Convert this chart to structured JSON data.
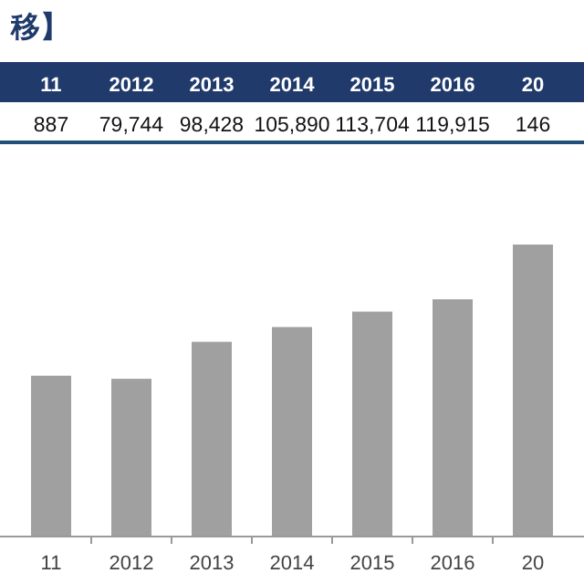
{
  "chart_data": {
    "type": "bar",
    "title": "移】",
    "categories": [
      "11",
      "2012",
      "2013",
      "2014",
      "2015",
      "2016",
      "20"
    ],
    "values": [
      81300,
      79744,
      98428,
      105890,
      113704,
      119915,
      147600
    ],
    "value_labels": [
      null,
      "79,744",
      "98,428",
      "105,890",
      "113,704",
      "119,915",
      null
    ],
    "annotations": [
      "887",
      "146"
    ],
    "color": "#a0a0a0",
    "grid": false
  }
}
